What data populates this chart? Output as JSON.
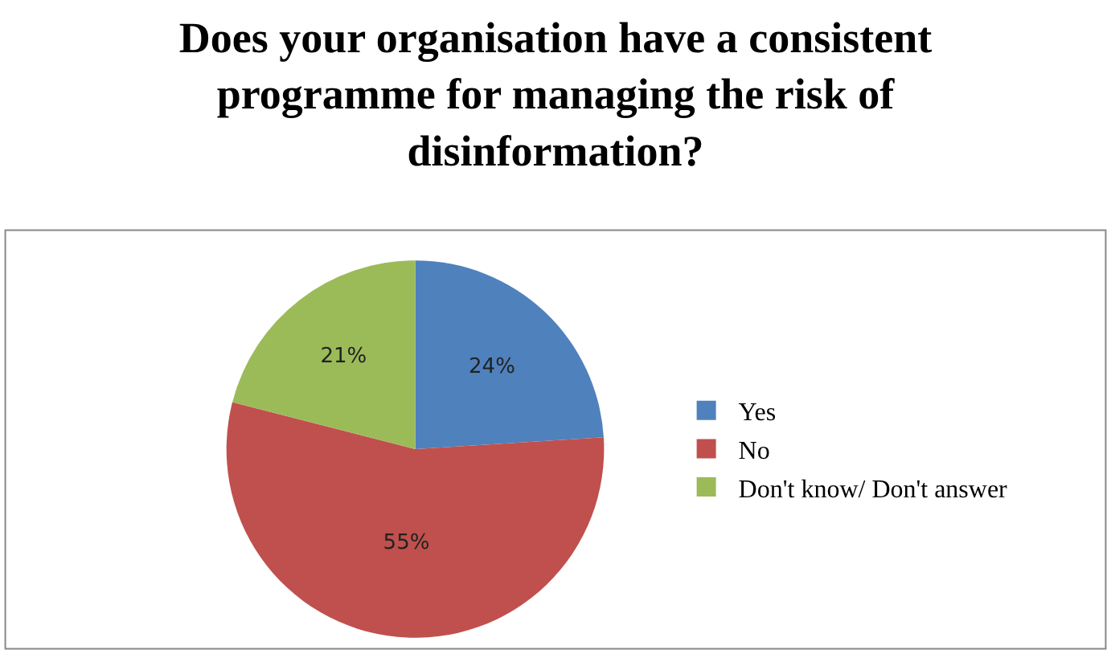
{
  "chart_data": {
    "type": "pie",
    "title": "Does your organisation have a consistent programme for managing the risk of disinformation?",
    "categories": [
      "Yes",
      "No",
      "Don't know/ Don't answer"
    ],
    "values": [
      24,
      55,
      21
    ],
    "value_labels": [
      "24%",
      "55%",
      "21%"
    ],
    "colors": [
      "#4f81bd",
      "#c0504d",
      "#9bbb59"
    ],
    "legend": "right"
  }
}
